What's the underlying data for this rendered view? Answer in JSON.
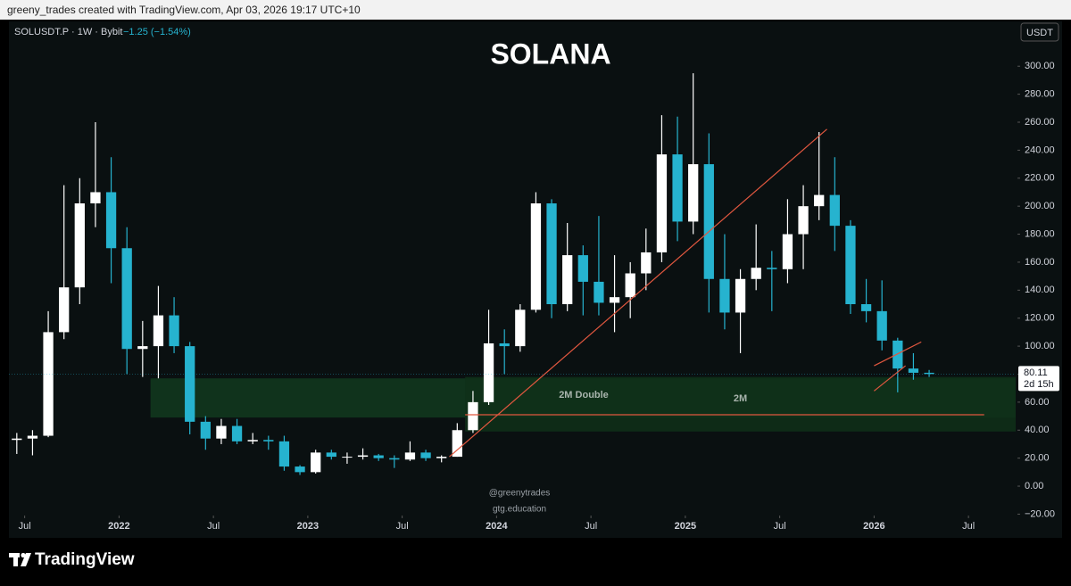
{
  "credit": "greeny_trades created with TradingView.com, Apr 03, 2026 19:17 UTC+10",
  "brand": "TradingView",
  "chart_data": {
    "type": "candlestick",
    "title": "SOLANA",
    "symbol": "SOLUSDT.P · 1W · Bybit",
    "change": "−1.25 (−1.54%)",
    "currency": "USDT",
    "countdown": "2d 15h",
    "watermarks": [
      "@greenytrades",
      "gtg.education"
    ],
    "up_color": "#ffffff",
    "down_color": "#26b3cf",
    "x": [
      "2021-06",
      "2021-07",
      "2021-08",
      "2021-09",
      "2021-10",
      "2021-11",
      "2021-12",
      "2022-01",
      "2022-02",
      "2022-03",
      "2022-04",
      "2022-05",
      "2022-06",
      "2022-07",
      "2022-08",
      "2022-09",
      "2022-10",
      "2022-11",
      "2022-12",
      "2023-01",
      "2023-02",
      "2023-03",
      "2023-04",
      "2023-05",
      "2023-06",
      "2023-07",
      "2023-08",
      "2023-09",
      "2023-10",
      "2023-11",
      "2023-12",
      "2024-01",
      "2024-02",
      "2024-03",
      "2024-04",
      "2024-05",
      "2024-06",
      "2024-07",
      "2024-08",
      "2024-09",
      "2024-10",
      "2024-11",
      "2024-12",
      "2025-01",
      "2025-02",
      "2025-03",
      "2025-04",
      "2025-05",
      "2025-06",
      "2025-07",
      "2025-08",
      "2025-09",
      "2025-10",
      "2025-11",
      "2025-12",
      "2026-01",
      "2026-02",
      "2026-03",
      "2026-04"
    ],
    "open": [
      33,
      34,
      36,
      110,
      142,
      202,
      210,
      170,
      98,
      100,
      122,
      100,
      46,
      34,
      43,
      32,
      33,
      32,
      14,
      10,
      24,
      21,
      21,
      22,
      20,
      19,
      24,
      20,
      21,
      40,
      60,
      102,
      100,
      126,
      202,
      130,
      165,
      146,
      131,
      135,
      152,
      167,
      237,
      189,
      230,
      148,
      124,
      148,
      156,
      155,
      180,
      200,
      208,
      186,
      130,
      125,
      104,
      84,
      81
    ],
    "high": [
      38,
      40,
      125,
      215,
      220,
      260,
      235,
      185,
      118,
      143,
      135,
      103,
      50,
      48,
      48,
      38,
      36,
      36,
      15,
      26,
      26,
      24,
      27,
      23,
      22,
      32,
      26,
      22,
      45,
      68,
      126,
      112,
      130,
      210,
      205,
      188,
      172,
      193,
      165,
      160,
      184,
      265,
      264,
      295,
      252,
      180,
      155,
      187,
      168,
      205,
      215,
      253,
      235,
      190,
      148,
      147,
      106,
      95,
      83
    ],
    "low": [
      23,
      22,
      35,
      105,
      130,
      185,
      145,
      80,
      78,
      77,
      95,
      37,
      26,
      30,
      30,
      30,
      26,
      11,
      8,
      9,
      19,
      16,
      19,
      18,
      13,
      18,
      18,
      17,
      21,
      38,
      58,
      80,
      96,
      124,
      120,
      125,
      122,
      122,
      110,
      120,
      140,
      160,
      175,
      180,
      124,
      112,
      95,
      140,
      125,
      145,
      155,
      190,
      168,
      123,
      117,
      97,
      67,
      76,
      78
    ],
    "close": [
      34,
      36,
      110,
      142,
      202,
      210,
      170,
      98,
      100,
      122,
      100,
      46,
      34,
      43,
      32,
      33,
      32,
      14,
      10,
      24,
      21,
      21,
      22,
      20,
      19,
      24,
      20,
      21,
      40,
      60,
      102,
      100,
      126,
      202,
      130,
      165,
      146,
      131,
      135,
      152,
      167,
      237,
      189,
      230,
      148,
      124,
      148,
      156,
      155,
      180,
      200,
      208,
      186,
      130,
      125,
      104,
      84,
      81,
      80.11
    ],
    "xlim": [
      "2021-06",
      "2026-10"
    ],
    "xticks": [
      {
        "value": "2021-07",
        "label": "Jul"
      },
      {
        "value": "2022-01",
        "label": "2022"
      },
      {
        "value": "2022-07",
        "label": "Jul"
      },
      {
        "value": "2023-01",
        "label": "2023"
      },
      {
        "value": "2023-07",
        "label": "Jul"
      },
      {
        "value": "2024-01",
        "label": "2024"
      },
      {
        "value": "2024-07",
        "label": "Jul"
      },
      {
        "value": "2025-01",
        "label": "2025"
      },
      {
        "value": "2025-07",
        "label": "Jul"
      },
      {
        "value": "2026-01",
        "label": "2026"
      },
      {
        "value": "2026-07",
        "label": "Jul"
      }
    ],
    "ylim": [
      -21,
      332
    ],
    "yticks": [
      {
        "value": -20,
        "label": "−20.00"
      },
      {
        "value": 0,
        "label": "0.00"
      },
      {
        "value": 20,
        "label": "20.00"
      },
      {
        "value": 40,
        "label": "40.00"
      },
      {
        "value": 60,
        "label": "60.00"
      },
      {
        "value": 80,
        "label": "80.00"
      },
      {
        "value": 100,
        "label": "100.00"
      },
      {
        "value": 120,
        "label": "120.00"
      },
      {
        "value": 140,
        "label": "140.00"
      },
      {
        "value": 160,
        "label": "160.00"
      },
      {
        "value": 180,
        "label": "180.00"
      },
      {
        "value": 200,
        "label": "200.00"
      },
      {
        "value": 220,
        "label": "220.00"
      },
      {
        "value": 240,
        "label": "240.00"
      },
      {
        "value": 260,
        "label": "260.00"
      },
      {
        "value": 280,
        "label": "280.00"
      },
      {
        "value": 300,
        "label": "300.00"
      }
    ],
    "zones": [
      {
        "label": "2M Double",
        "x": [
          "2022-03",
          "2026-10"
        ],
        "y": [
          49,
          77
        ],
        "color": "#123a1e"
      },
      {
        "label": "2M",
        "x": [
          "2023-11",
          "2026-10"
        ],
        "y": [
          39,
          78
        ],
        "color": "#0f3019"
      }
    ],
    "lines": [
      {
        "x": [
          "2023-11",
          "2026-08"
        ],
        "y": [
          51,
          51
        ],
        "color": "#e0573f"
      },
      {
        "x": [
          "2023-10",
          "2025-10"
        ],
        "y": [
          21,
          255
        ],
        "color": "#e0573f"
      },
      {
        "x": [
          "2026-01",
          "2026-03"
        ],
        "y": [
          68,
          86
        ],
        "color": "#e0573f"
      },
      {
        "x": [
          "2026-01",
          "2026-04"
        ],
        "y": [
          86,
          103
        ],
        "color": "#e0573f"
      }
    ]
  }
}
